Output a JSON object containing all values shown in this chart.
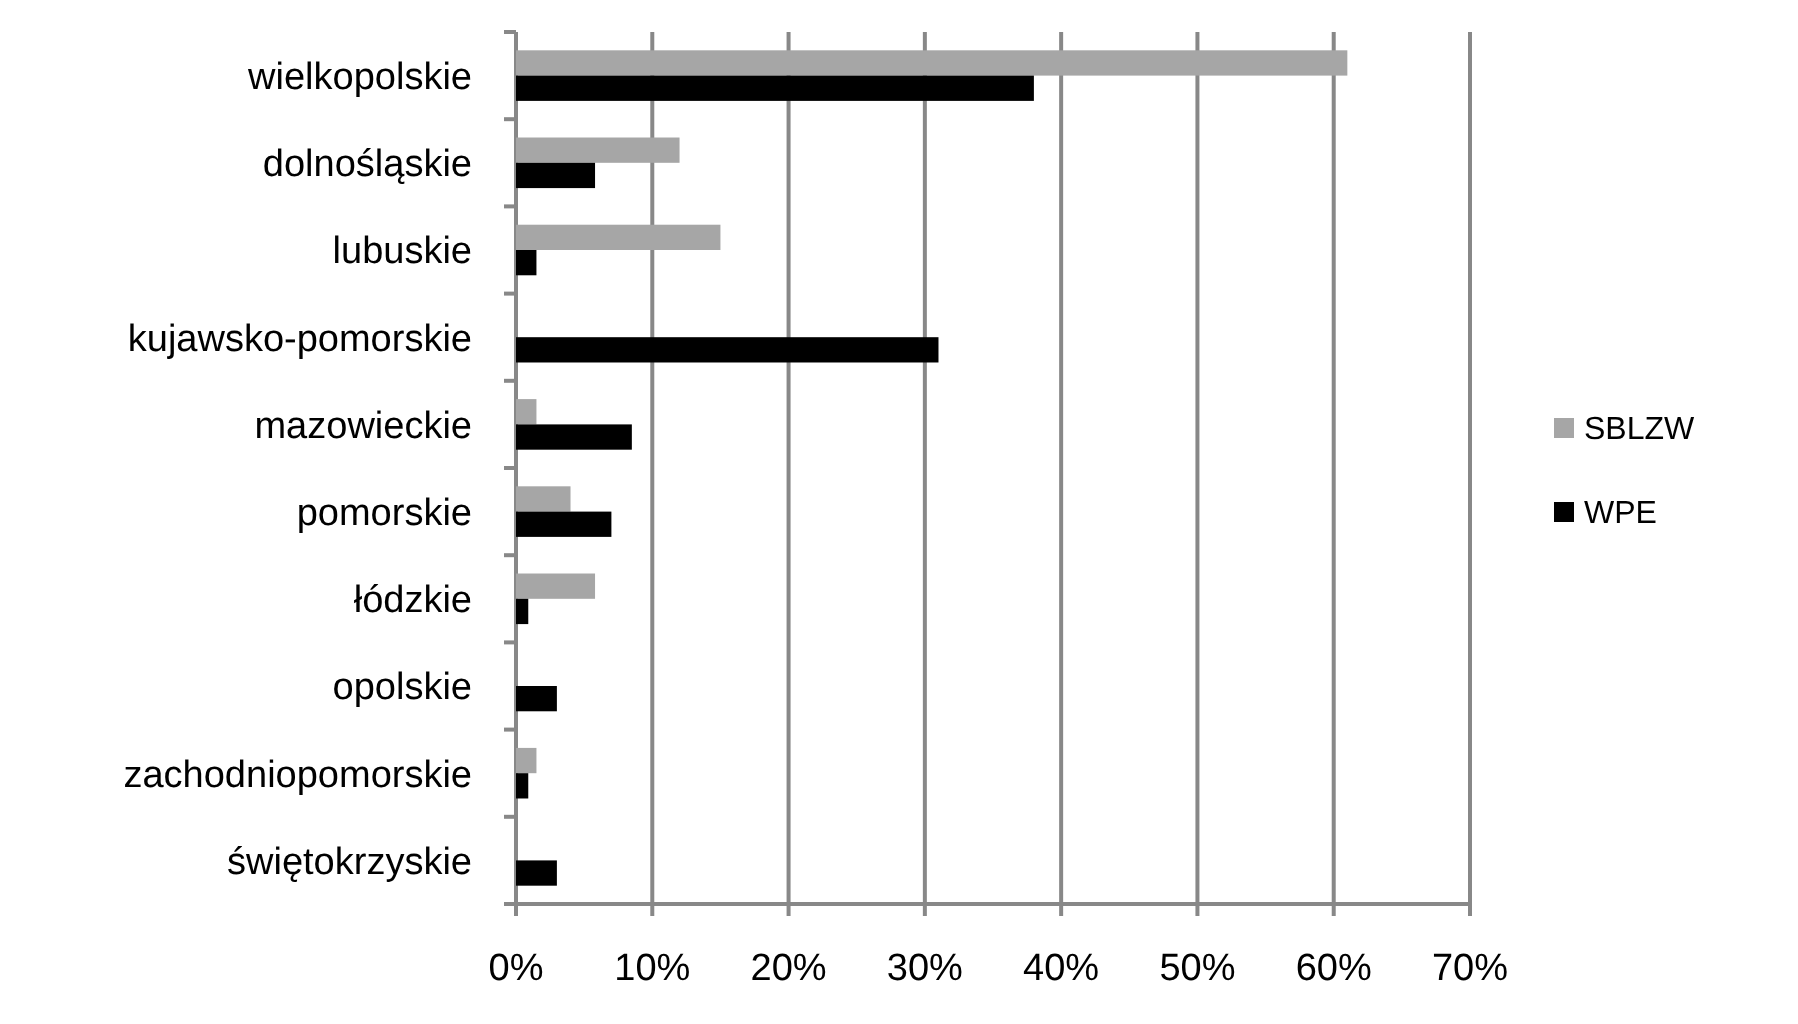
{
  "chart_data": {
    "type": "bar",
    "orientation": "horizontal",
    "categories": [
      "wielkopolskie",
      "dolnośląskie",
      "lubuskie",
      "kujawsko-pomorskie",
      "mazowieckie",
      "pomorskie",
      "łódzkie",
      "opolskie",
      "zachodniopomorskie",
      "świętokrzyskie"
    ],
    "series": [
      {
        "name": "SBLZW",
        "color": "#a6a6a6",
        "values": [
          61,
          12,
          15,
          0,
          1.5,
          4,
          5.8,
          0,
          1.5,
          0
        ]
      },
      {
        "name": "WPE",
        "color": "#000000",
        "values": [
          38,
          5.8,
          1.5,
          31,
          8.5,
          7,
          0.9,
          3,
          0.9,
          3
        ]
      }
    ],
    "xlim": [
      0,
      70
    ],
    "xticks": [
      {
        "value": 0,
        "label": "0%"
      },
      {
        "value": 10,
        "label": "10%"
      },
      {
        "value": 20,
        "label": "20%"
      },
      {
        "value": 30,
        "label": "30%"
      },
      {
        "value": 40,
        "label": "40%"
      },
      {
        "value": 50,
        "label": "50%"
      },
      {
        "value": 60,
        "label": "60%"
      },
      {
        "value": 70,
        "label": "70%"
      }
    ],
    "grid": "x",
    "legend": "right"
  }
}
